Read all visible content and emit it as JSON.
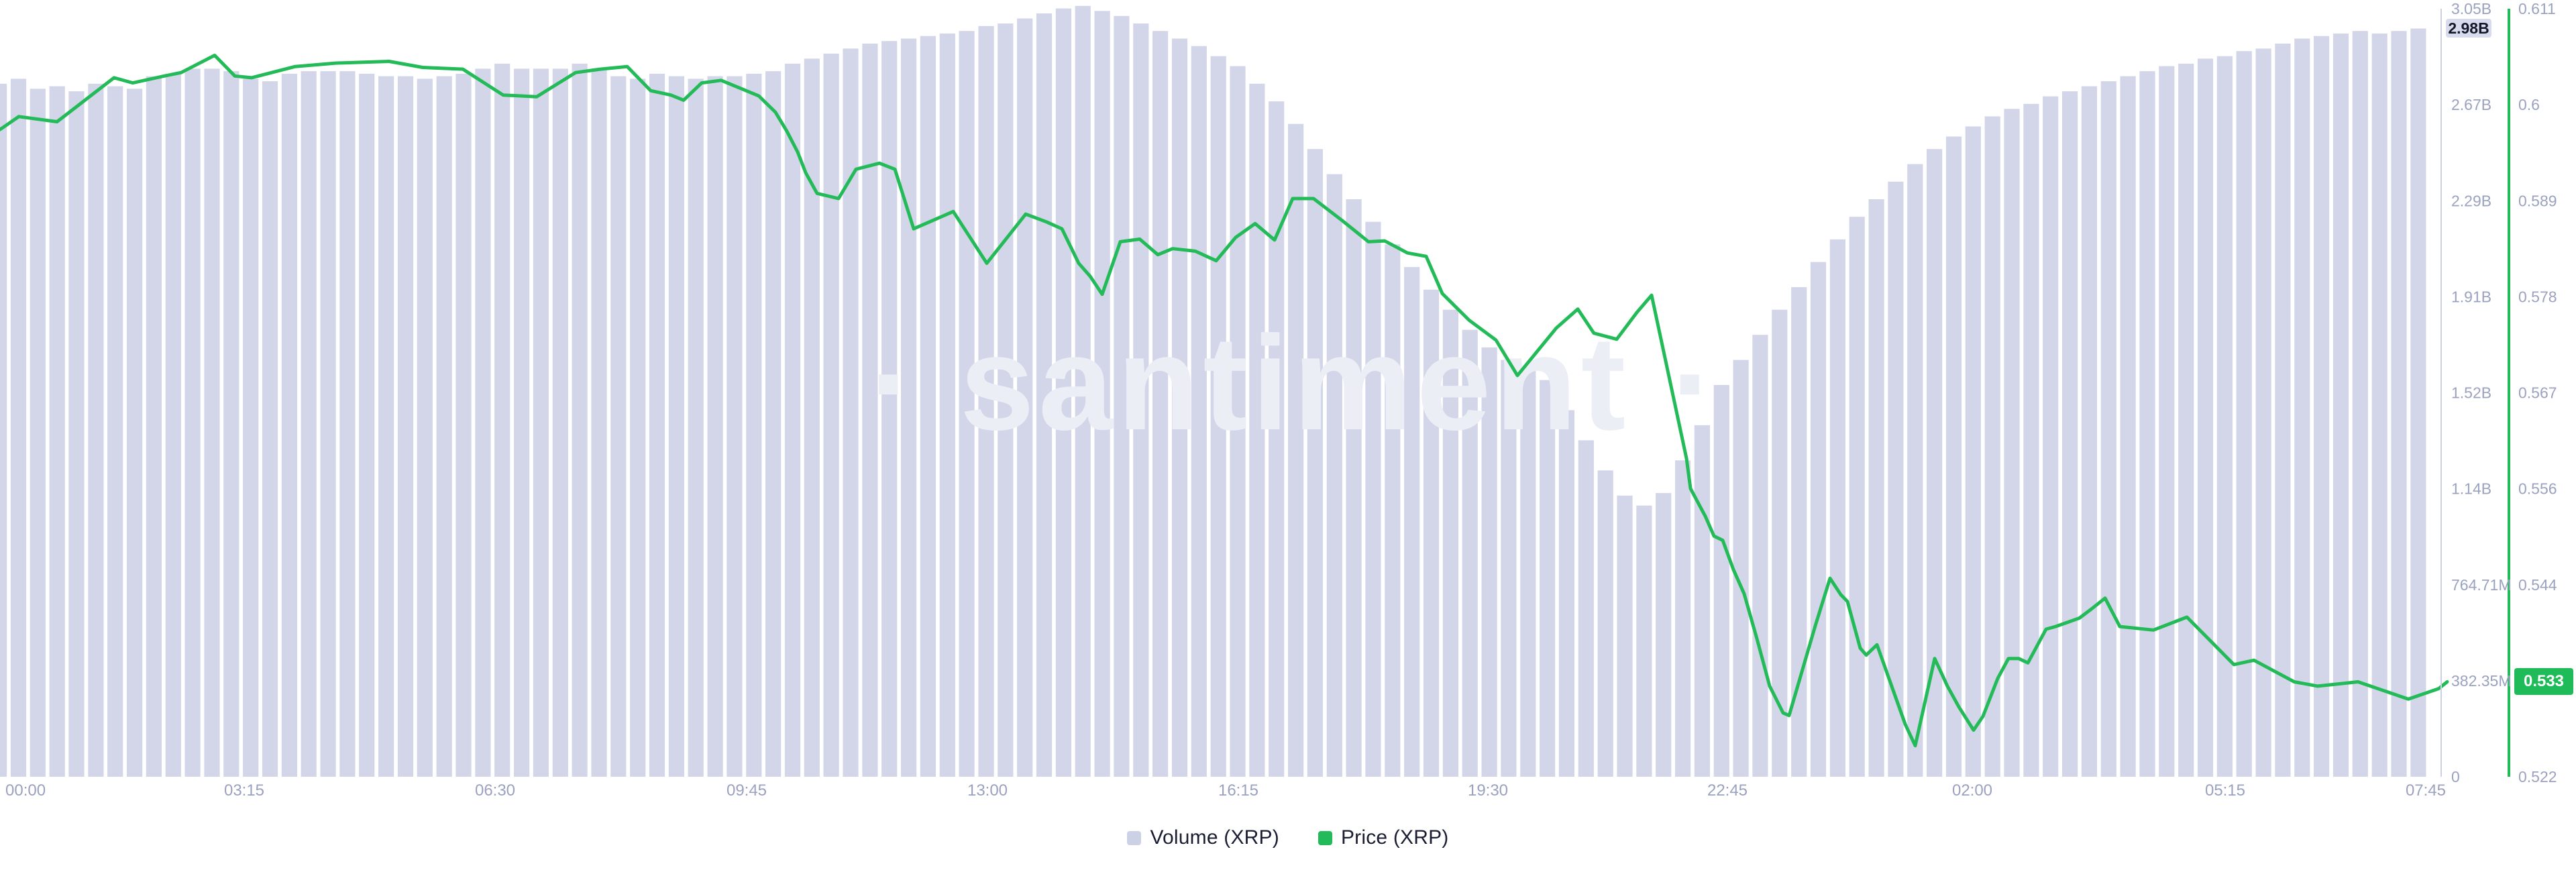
{
  "chart_data": {
    "type": [
      "bar",
      "line"
    ],
    "title": "",
    "watermark": "· santiment ·",
    "legend": [
      {
        "label": "Volume (XRP)",
        "color": "#cdd1e5"
      },
      {
        "label": "Price (XRP)",
        "color": "#23bb59"
      }
    ],
    "x_axis": {
      "tick_labels": [
        "00:00",
        "03:15",
        "06:30",
        "09:45",
        "13:00",
        "16:15",
        "19:30",
        "22:45",
        "02:00",
        "05:15",
        "07:45"
      ],
      "interval_minutes_per_bar": 15
    },
    "y_axis_volume": {
      "tick_labels": [
        "3.05B",
        "2.67B",
        "2.29B",
        "1.91B",
        "1.52B",
        "1.14B",
        "764.71M",
        "382.35M",
        "0"
      ],
      "max_billions": 3.0588,
      "min": 0,
      "current": "2.98B"
    },
    "y_axis_price": {
      "tick_labels": [
        "0.611",
        "0.6",
        "0.589",
        "0.578",
        "0.567",
        "0.556",
        "0.544",
        "0.533",
        "0.522"
      ],
      "max": 0.611,
      "min": 0.522,
      "current": "0.533"
    },
    "series": [
      {
        "name": "Volume (XRP)",
        "type": "bar",
        "color": "#d3d6e9",
        "values_billions": [
          2.76,
          2.78,
          2.74,
          2.75,
          2.73,
          2.76,
          2.75,
          2.74,
          2.79,
          2.8,
          2.82,
          2.82,
          2.81,
          2.78,
          2.77,
          2.8,
          2.81,
          2.81,
          2.81,
          2.8,
          2.79,
          2.79,
          2.78,
          2.79,
          2.8,
          2.82,
          2.84,
          2.82,
          2.82,
          2.82,
          2.84,
          2.82,
          2.79,
          2.78,
          2.8,
          2.79,
          2.78,
          2.79,
          2.79,
          2.8,
          2.81,
          2.84,
          2.86,
          2.88,
          2.9,
          2.92,
          2.93,
          2.94,
          2.95,
          2.96,
          2.97,
          2.99,
          3.0,
          3.02,
          3.04,
          3.06,
          3.07,
          3.05,
          3.03,
          3.0,
          2.97,
          2.94,
          2.91,
          2.87,
          2.83,
          2.76,
          2.69,
          2.6,
          2.5,
          2.4,
          2.3,
          2.21,
          2.12,
          2.03,
          1.94,
          1.86,
          1.78,
          1.71,
          1.66,
          1.62,
          1.58,
          1.46,
          1.34,
          1.22,
          1.12,
          1.08,
          1.13,
          1.26,
          1.4,
          1.56,
          1.66,
          1.76,
          1.86,
          1.95,
          2.05,
          2.14,
          2.23,
          2.3,
          2.37,
          2.44,
          2.5,
          2.55,
          2.59,
          2.63,
          2.66,
          2.68,
          2.71,
          2.73,
          2.75,
          2.77,
          2.79,
          2.81,
          2.83,
          2.84,
          2.86,
          2.87,
          2.89,
          2.9,
          2.92,
          2.94,
          2.95,
          2.96,
          2.97,
          2.96,
          2.97,
          2.98
        ]
      },
      {
        "name": "Price (XRP)",
        "type": "line",
        "color": "#23ba58",
        "points": [
          [
            0,
            0.597
          ],
          [
            28,
            0.5985
          ],
          [
            85,
            0.5979
          ],
          [
            170,
            0.603
          ],
          [
            198,
            0.6024
          ],
          [
            245,
            0.6032
          ],
          [
            270,
            0.6036
          ],
          [
            320,
            0.6056
          ],
          [
            350,
            0.6032
          ],
          [
            375,
            0.603
          ],
          [
            440,
            0.6043
          ],
          [
            500,
            0.6047
          ],
          [
            580,
            0.6049
          ],
          [
            630,
            0.6042
          ],
          [
            690,
            0.604
          ],
          [
            750,
            0.601
          ],
          [
            800,
            0.6008
          ],
          [
            858,
            0.6036
          ],
          [
            895,
            0.604
          ],
          [
            935,
            0.6043
          ],
          [
            970,
            0.6015
          ],
          [
            1000,
            0.601
          ],
          [
            1019,
            0.6004
          ],
          [
            1046,
            0.6024
          ],
          [
            1075,
            0.6027
          ],
          [
            1131,
            0.6009
          ],
          [
            1156,
            0.599
          ],
          [
            1173,
            0.5968
          ],
          [
            1189,
            0.5944
          ],
          [
            1201,
            0.592
          ],
          [
            1218,
            0.5896
          ],
          [
            1250,
            0.589
          ],
          [
            1276,
            0.5924
          ],
          [
            1311,
            0.5931
          ],
          [
            1334,
            0.5924
          ],
          [
            1362,
            0.5855
          ],
          [
            1421,
            0.5875
          ],
          [
            1471,
            0.5815
          ],
          [
            1529,
            0.5872
          ],
          [
            1560,
            0.5863
          ],
          [
            1583,
            0.5855
          ],
          [
            1608,
            0.5815
          ],
          [
            1625,
            0.58
          ],
          [
            1643,
            0.5779
          ],
          [
            1670,
            0.584
          ],
          [
            1699,
            0.5843
          ],
          [
            1726,
            0.5825
          ],
          [
            1748,
            0.5832
          ],
          [
            1782,
            0.5829
          ],
          [
            1813,
            0.5818
          ],
          [
            1842,
            0.5845
          ],
          [
            1871,
            0.5861
          ],
          [
            1900,
            0.5842
          ],
          [
            1927,
            0.589
          ],
          [
            1958,
            0.589
          ],
          [
            2000,
            0.5865
          ],
          [
            2040,
            0.584
          ],
          [
            2064,
            0.5841
          ],
          [
            2098,
            0.5827
          ],
          [
            2126,
            0.5823
          ],
          [
            2150,
            0.578
          ],
          [
            2190,
            0.5749
          ],
          [
            2230,
            0.5726
          ],
          [
            2262,
            0.5685
          ],
          [
            2320,
            0.574
          ],
          [
            2352,
            0.5762
          ],
          [
            2376,
            0.5734
          ],
          [
            2410,
            0.5727
          ],
          [
            2440,
            0.5758
          ],
          [
            2462,
            0.5778
          ],
          [
            2514,
            0.5589
          ],
          [
            2520,
            0.5554
          ],
          [
            2542,
            0.5522
          ],
          [
            2555,
            0.5499
          ],
          [
            2568,
            0.5494
          ],
          [
            2584,
            0.546
          ],
          [
            2600,
            0.5432
          ],
          [
            2619,
            0.538
          ],
          [
            2638,
            0.5325
          ],
          [
            2658,
            0.5294
          ],
          [
            2667,
            0.5291
          ],
          [
            2706,
            0.5395
          ],
          [
            2728,
            0.545
          ],
          [
            2744,
            0.5431
          ],
          [
            2754,
            0.5423
          ],
          [
            2773,
            0.5369
          ],
          [
            2782,
            0.5361
          ],
          [
            2798,
            0.5373
          ],
          [
            2824,
            0.5316
          ],
          [
            2840,
            0.5281
          ],
          [
            2855,
            0.5256
          ],
          [
            2884,
            0.5357
          ],
          [
            2903,
            0.5325
          ],
          [
            2920,
            0.5301
          ],
          [
            2942,
            0.5274
          ],
          [
            2956,
            0.529
          ],
          [
            2978,
            0.5334
          ],
          [
            2994,
            0.5357
          ],
          [
            3009,
            0.5357
          ],
          [
            3023,
            0.5352
          ],
          [
            3050,
            0.5391
          ],
          [
            3064,
            0.5394
          ],
          [
            3086,
            0.54
          ],
          [
            3100,
            0.5404
          ],
          [
            3117,
            0.5414
          ],
          [
            3138,
            0.5427
          ],
          [
            3160,
            0.5394
          ],
          [
            3210,
            0.539
          ],
          [
            3260,
            0.5405
          ],
          [
            3330,
            0.535
          ],
          [
            3360,
            0.5355
          ],
          [
            3420,
            0.533
          ],
          [
            3455,
            0.5325
          ],
          [
            3515,
            0.533
          ],
          [
            3560,
            0.5318
          ],
          [
            3590,
            0.531
          ],
          [
            3635,
            0.5322
          ],
          [
            3648,
            0.533
          ]
        ]
      }
    ],
    "layout_hints": {
      "grid": false,
      "legend_position": "bottom-center",
      "volume_axis_side": "right-inner",
      "price_axis_side": "right-outer",
      "background": "#ffffff",
      "axis_label_color": "#9aa2c0"
    }
  }
}
